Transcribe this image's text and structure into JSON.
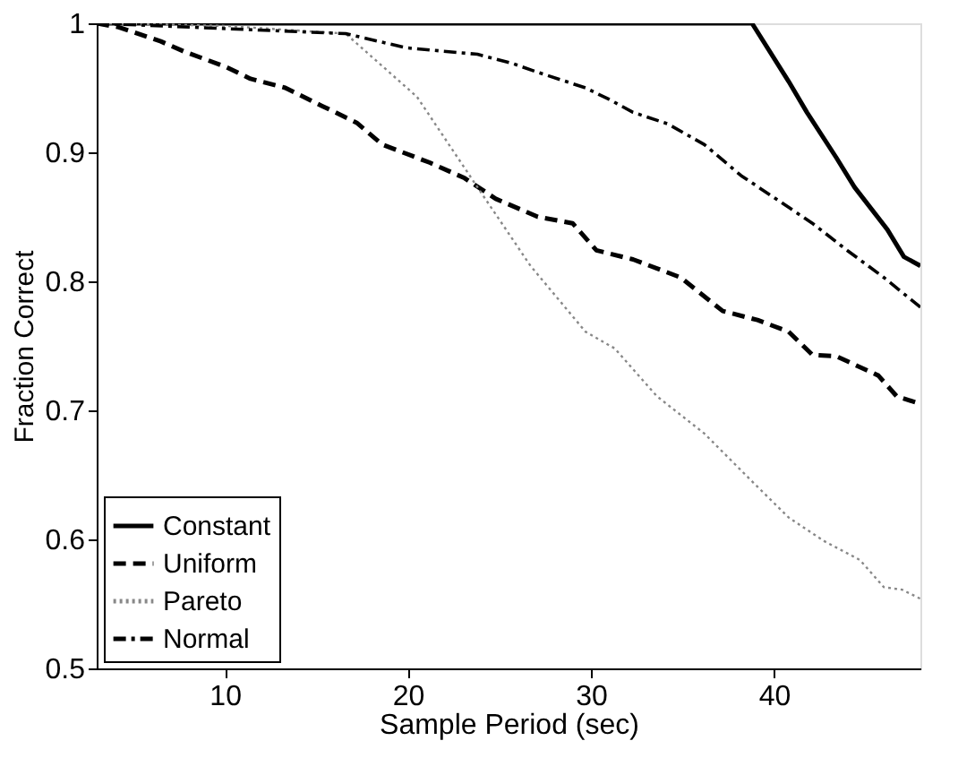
{
  "chart_data": {
    "type": "line",
    "xlabel": "Sample Period (sec)",
    "ylabel": "Fraction Correct",
    "xlim": [
      3,
      48
    ],
    "xticks": [
      10,
      20,
      30,
      40
    ],
    "ylim": [
      0.5,
      1
    ],
    "yticks": [
      0.5,
      0.6,
      0.7,
      0.8,
      0.9,
      1
    ],
    "grid": false,
    "legend": "bottom left",
    "marker": "none",
    "series": [
      {
        "name": "Constant",
        "color": "#000000",
        "line_style": "solid",
        "x": [
          3,
          38.8,
          40.8,
          41.8,
          43.4,
          44.4,
          46.2,
          47.1,
          48
        ],
        "values": [
          1,
          1,
          0.955,
          0.931,
          0.896,
          0.873,
          0.84,
          0.819,
          0.812
        ]
      },
      {
        "name": "Uniform",
        "color": "#000000",
        "line_style": "dashed",
        "x": [
          3,
          4.2,
          6.5,
          7.8,
          10.1,
          11.4,
          13.3,
          15.3,
          17.2,
          18.6,
          21.2,
          23.1,
          24.8,
          27.1,
          29.0,
          30.3,
          32.3,
          34.9,
          37.2,
          39.1,
          40.8,
          42.1,
          43.4,
          45.7,
          46.7,
          48
        ],
        "values": [
          1,
          0.997,
          0.986,
          0.978,
          0.966,
          0.957,
          0.95,
          0.936,
          0.923,
          0.906,
          0.892,
          0.88,
          0.864,
          0.85,
          0.845,
          0.824,
          0.817,
          0.803,
          0.777,
          0.77,
          0.761,
          0.743,
          0.742,
          0.727,
          0.711,
          0.705
        ]
      },
      {
        "name": "Pareto",
        "color": "#888888",
        "line_style": "dotted",
        "x": [
          3,
          10,
          16.6,
          20.5,
          23.8,
          26.7,
          29.7,
          31.3,
          33.6,
          36.2,
          38.8,
          40.8,
          42.7,
          44.7,
          46.0,
          47.0,
          48
        ],
        "values": [
          1,
          0.998,
          0.992,
          0.943,
          0.873,
          0.812,
          0.761,
          0.748,
          0.711,
          0.682,
          0.645,
          0.617,
          0.599,
          0.584,
          0.563,
          0.561,
          0.554
        ]
      },
      {
        "name": "Normal",
        "color": "#000000",
        "line_style": "dashdot",
        "x": [
          3,
          16.6,
          19.9,
          23.8,
          25.7,
          27.1,
          29.7,
          31.0,
          32.3,
          34.2,
          36.2,
          38.2,
          40.1,
          42.1,
          44.0,
          46.0,
          48
        ],
        "values": [
          1,
          0.992,
          0.981,
          0.976,
          0.969,
          0.962,
          0.95,
          0.941,
          0.931,
          0.922,
          0.906,
          0.882,
          0.864,
          0.845,
          0.824,
          0.803,
          0.78
        ]
      }
    ]
  }
}
